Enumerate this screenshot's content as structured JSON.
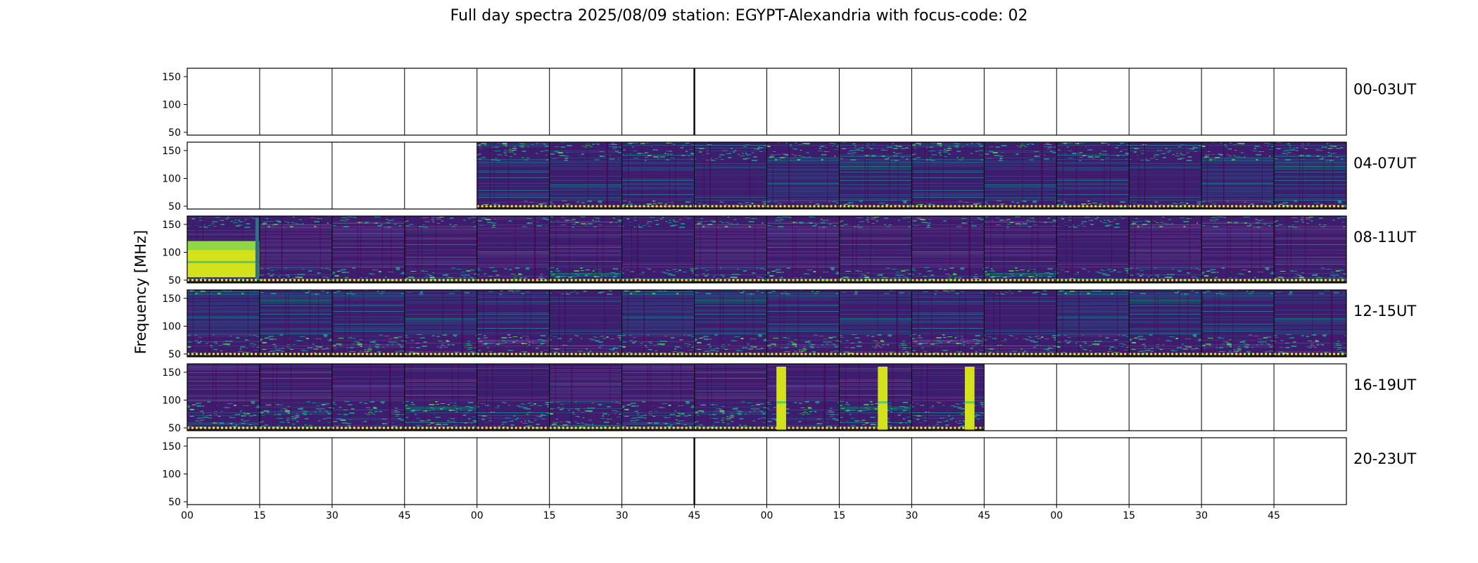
{
  "chart_data": {
    "type": "heatmap",
    "title": "Full day spectra 2025/08/09 station: EGYPT-Alexandria with focus-code: 02",
    "ylabel": "Frequency [MHz]",
    "xlabel": "",
    "ylim": [
      45,
      165
    ],
    "y_ticks": [
      "150",
      "100",
      "50"
    ],
    "x_ticks": [
      "00",
      "15",
      "30",
      "45",
      "00",
      "15",
      "30",
      "45",
      "00",
      "15",
      "30",
      "45",
      "00",
      "15",
      "30",
      "45"
    ],
    "colormap": [
      "#440154",
      "#3b528b",
      "#21918c",
      "#5ec962",
      "#fde725"
    ],
    "rows": [
      {
        "label": "00-03UT",
        "start_minute": 0,
        "end_minute": 0
      },
      {
        "label": "04-07UT",
        "start_minute": 60,
        "end_minute": 240
      },
      {
        "label": "08-11UT",
        "start_minute": 0,
        "end_minute": 240
      },
      {
        "label": "12-15UT",
        "start_minute": 0,
        "end_minute": 240
      },
      {
        "label": "16-19UT",
        "start_minute": 0,
        "end_minute": 165
      },
      {
        "label": "20-23UT",
        "start_minute": 0,
        "end_minute": 0
      }
    ],
    "bursts": [
      {
        "row": "08-11UT",
        "start_minute": 0,
        "end_minute": 15,
        "band_mhz": [
          55,
          120
        ]
      },
      {
        "row": "16-19UT",
        "start_minute": 122,
        "end_minute": 124,
        "band_mhz": [
          47,
          160
        ]
      },
      {
        "row": "16-19UT",
        "start_minute": 143,
        "end_minute": 145,
        "band_mhz": [
          47,
          160
        ]
      },
      {
        "row": "16-19UT",
        "start_minute": 161,
        "end_minute": 163,
        "band_mhz": [
          47,
          160
        ]
      }
    ]
  }
}
